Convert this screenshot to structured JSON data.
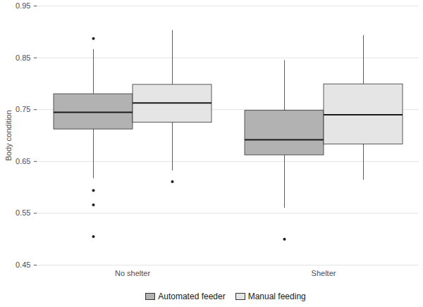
{
  "chart_data": {
    "type": "box",
    "ylabel": "Body condition",
    "categories": [
      "No shelter",
      "Shelter"
    ],
    "series": [
      {
        "name": "Automated feeder",
        "color": "#b2b2b2",
        "boxes": [
          {
            "min": 0.617,
            "q1": 0.712,
            "median": 0.745,
            "q3": 0.78,
            "max": 0.866,
            "outliers": [
              0.887,
              0.594,
              0.566,
              0.505
            ]
          },
          {
            "min": 0.56,
            "q1": 0.662,
            "median": 0.692,
            "q3": 0.748,
            "max": 0.845,
            "outliers": [
              0.5
            ]
          }
        ]
      },
      {
        "name": "Manual feeding",
        "color": "#e5e5e5",
        "boxes": [
          {
            "min": 0.632,
            "q1": 0.725,
            "median": 0.763,
            "q3": 0.798,
            "max": 0.903,
            "outliers": [
              0.611
            ]
          },
          {
            "min": 0.614,
            "q1": 0.683,
            "median": 0.74,
            "q3": 0.799,
            "max": 0.893,
            "outliers": []
          }
        ]
      }
    ],
    "ylim": [
      0.45,
      0.95
    ],
    "yticks": [
      0.45,
      0.55,
      0.65,
      0.75,
      0.85,
      0.95
    ],
    "grid": true,
    "legend": "bottom"
  }
}
